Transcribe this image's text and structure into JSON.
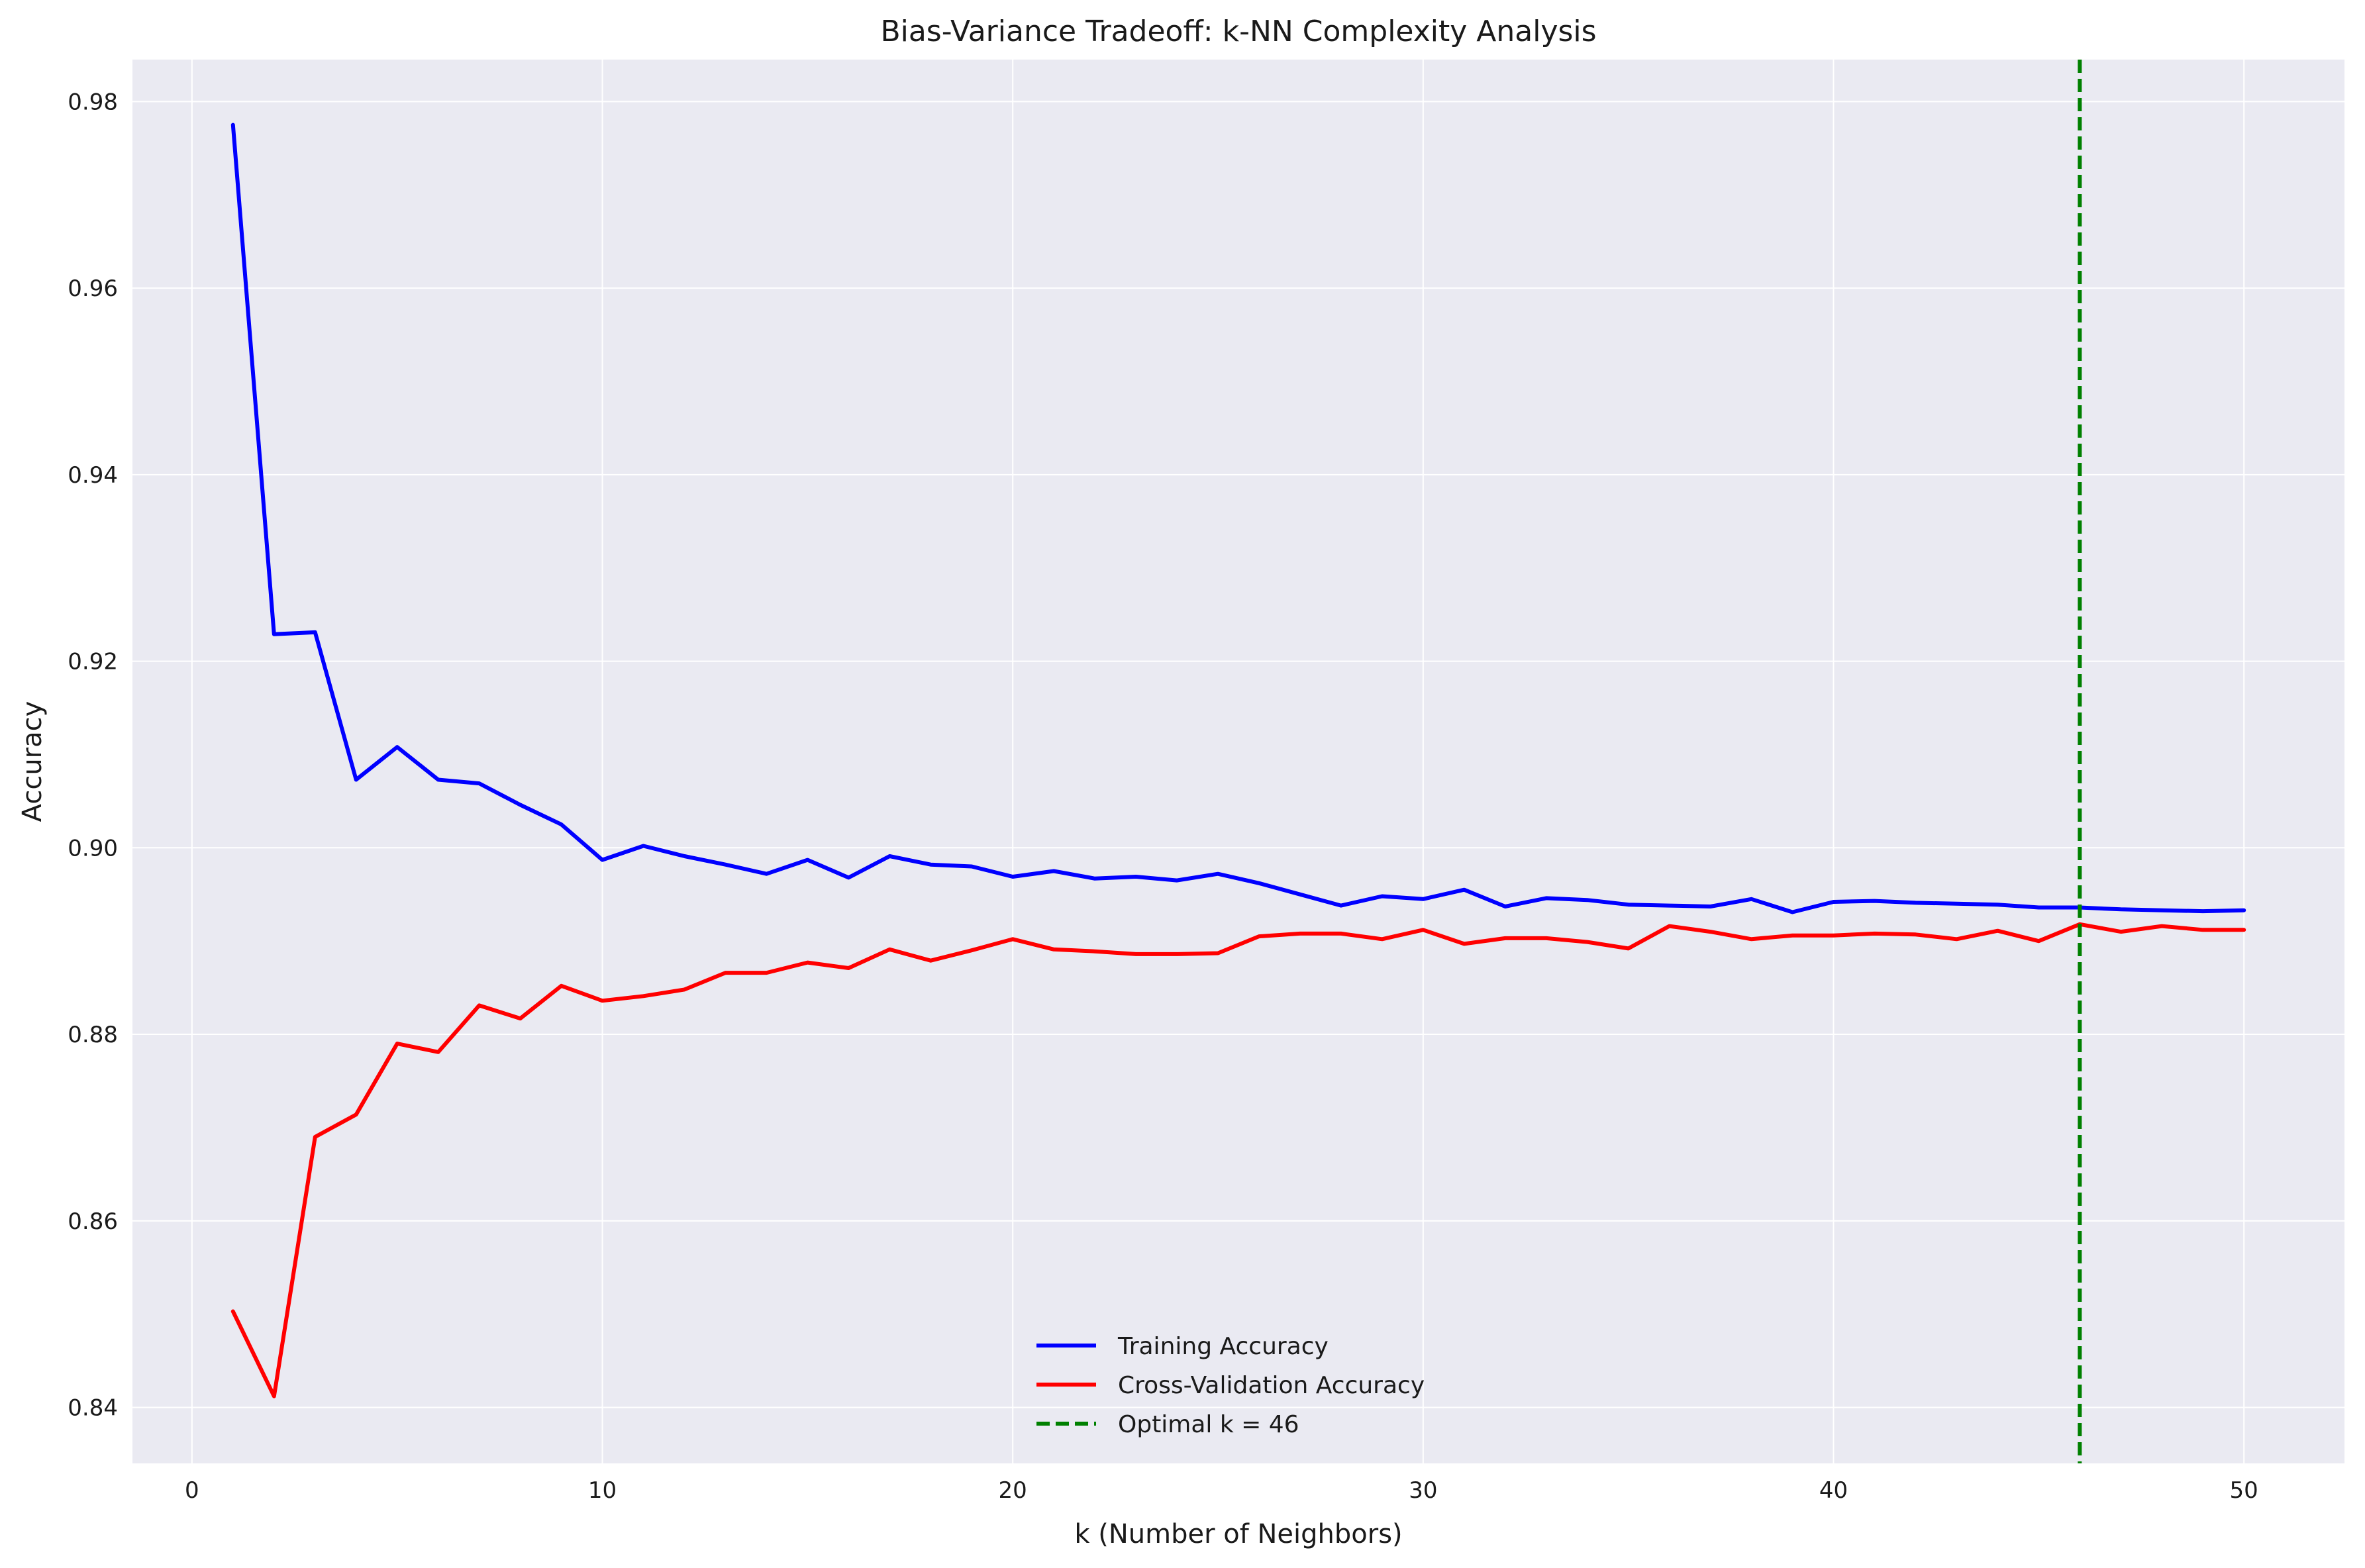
{
  "chart_data": {
    "type": "line",
    "title": "Bias-Variance Tradeoff: k-NN Complexity Analysis",
    "xlabel": "k (Number of Neighbors)",
    "ylabel": "Accuracy",
    "xlim": [
      -1.45,
      52.45
    ],
    "ylim": [
      0.834,
      0.9845
    ],
    "xticks": [
      0,
      10,
      20,
      30,
      40,
      50
    ],
    "yticks": [
      0.84,
      0.86,
      0.88,
      0.9,
      0.92,
      0.94,
      0.96,
      0.98
    ],
    "grid": true,
    "legend_position": "lower-center",
    "background_color": "#eaeaf2",
    "x": [
      1,
      2,
      3,
      4,
      5,
      6,
      7,
      8,
      9,
      10,
      11,
      12,
      13,
      14,
      15,
      16,
      17,
      18,
      19,
      20,
      21,
      22,
      23,
      24,
      25,
      26,
      27,
      28,
      29,
      30,
      31,
      32,
      33,
      34,
      35,
      36,
      37,
      38,
      39,
      40,
      41,
      42,
      43,
      44,
      45,
      46,
      47,
      48,
      49,
      50
    ],
    "series": [
      {
        "name": "Training Accuracy",
        "color": "#0000ff",
        "style": "solid",
        "values": [
          0.9775,
          0.9229,
          0.9231,
          0.9073,
          0.9108,
          0.9073,
          0.9069,
          0.9046,
          0.9025,
          0.8987,
          0.9002,
          0.8991,
          0.8982,
          0.8972,
          0.8987,
          0.8968,
          0.8991,
          0.8982,
          0.898,
          0.8969,
          0.8975,
          0.8967,
          0.8969,
          0.8965,
          0.8972,
          0.8962,
          0.895,
          0.8938,
          0.8948,
          0.8945,
          0.8955,
          0.8937,
          0.8946,
          0.8944,
          0.8939,
          0.8938,
          0.8937,
          0.8945,
          0.8931,
          0.8942,
          0.8943,
          0.8941,
          0.894,
          0.8939,
          0.8936,
          0.8936,
          0.8934,
          0.8933,
          0.8932,
          0.8933
        ]
      },
      {
        "name": "Cross-Validation Accuracy",
        "color": "#ff0000",
        "style": "solid",
        "values": [
          0.8503,
          0.8412,
          0.869,
          0.8714,
          0.879,
          0.8781,
          0.8831,
          0.8817,
          0.8852,
          0.8836,
          0.8841,
          0.8848,
          0.8866,
          0.8866,
          0.8877,
          0.8871,
          0.8891,
          0.8879,
          0.889,
          0.8902,
          0.8891,
          0.8889,
          0.8886,
          0.8886,
          0.8887,
          0.8905,
          0.8908,
          0.8908,
          0.8902,
          0.8912,
          0.8897,
          0.8903,
          0.8903,
          0.8899,
          0.8892,
          0.8916,
          0.891,
          0.8902,
          0.8906,
          0.8906,
          0.8908,
          0.8907,
          0.8902,
          0.8911,
          0.89,
          0.8918,
          0.891,
          0.8916,
          0.8912,
          0.8912
        ]
      }
    ],
    "vline": {
      "name": "Optimal k = 46",
      "x": 46,
      "color": "#008000",
      "style": "dashed"
    }
  }
}
